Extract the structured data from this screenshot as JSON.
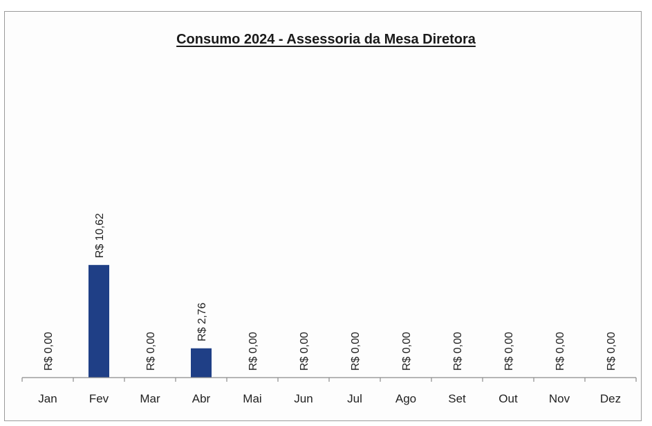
{
  "chart_data": {
    "type": "bar",
    "title": "Consumo 2024 - Assessoria da Mesa Diretora",
    "xlabel": "",
    "ylabel": "",
    "categories": [
      "Jan",
      "Fev",
      "Mar",
      "Abr",
      "Mai",
      "Jun",
      "Jul",
      "Ago",
      "Set",
      "Out",
      "Nov",
      "Dez"
    ],
    "values": [
      0,
      10.62,
      0,
      2.76,
      0,
      0,
      0,
      0,
      0,
      0,
      0,
      0
    ],
    "data_labels": [
      "R$ 0,00",
      "R$ 10,62",
      "R$ 0,00",
      "R$ 2,76",
      "R$ 0,00",
      "R$ 0,00",
      "R$ 0,00",
      "R$ 0,00",
      "R$ 0,00",
      "R$ 0,00",
      "R$ 0,00",
      "R$ 0,00"
    ],
    "ylim": [
      0,
      30
    ],
    "grid": false,
    "legend": "none",
    "colors": {
      "bar": "#1f3f86",
      "axis": "#8c8c8c",
      "text": "#1f1f1f"
    }
  }
}
